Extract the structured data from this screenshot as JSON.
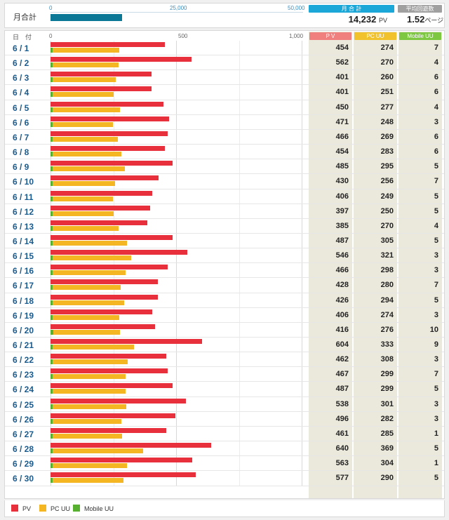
{
  "summary": {
    "month_total_label": "月合計",
    "top_axis_ticks": [
      "0",
      "25,000",
      "50,000"
    ],
    "top_axis_max": 50000,
    "total_value": 14232,
    "headers": {
      "month_total": "月 合 計",
      "avg_visits": "平均回遊数"
    },
    "total_pv_text": "14,232",
    "pv_unit": "PV",
    "avg_value_text": "1.52",
    "avg_unit": "ページ"
  },
  "table": {
    "date_header": "日　付",
    "axis_ticks": [
      "0",
      "500",
      "1,000"
    ],
    "col_headers": {
      "pv": "P V",
      "pc_uu": "PC UU",
      "mobile_uu": "Mobile UU"
    }
  },
  "legend": [
    {
      "label": "PV",
      "color": "#e8303d"
    },
    {
      "label": "PC UU",
      "color": "#f5b623"
    },
    {
      "label": "Mobile UU",
      "color": "#58b031"
    }
  ],
  "colors": {
    "pv": "#e8303d",
    "pc_uu": "#f5b623",
    "mobile_uu": "#58b031",
    "total_bar": "#0a7896",
    "hdr_pv": "#f0807e",
    "hdr_pc": "#f2c22c",
    "hdr_mobile": "#7dc741",
    "hdr_total": "#1ba8d9",
    "hdr_avg": "#a0a0a0"
  },
  "chart_data": {
    "type": "bar",
    "orientation": "horizontal",
    "xlim": [
      0,
      1000
    ],
    "categories": [
      "6 / 1",
      "6 / 2",
      "6 / 3",
      "6 / 4",
      "6 / 5",
      "6 / 6",
      "6 / 7",
      "6 / 8",
      "6 / 9",
      "6 / 10",
      "6 / 11",
      "6 / 12",
      "6 / 13",
      "6 / 14",
      "6 / 15",
      "6 / 16",
      "6 / 17",
      "6 / 18",
      "6 / 19",
      "6 / 20",
      "6 / 21",
      "6 / 22",
      "6 / 23",
      "6 / 24",
      "6 / 25",
      "6 / 26",
      "6 / 27",
      "6 / 28",
      "6 / 29",
      "6 / 30"
    ],
    "series": [
      {
        "name": "PV",
        "values": [
          454,
          562,
          401,
          401,
          450,
          471,
          466,
          454,
          485,
          430,
          406,
          397,
          385,
          487,
          546,
          466,
          428,
          426,
          406,
          416,
          604,
          462,
          467,
          487,
          538,
          496,
          461,
          640,
          563,
          577
        ]
      },
      {
        "name": "PC UU",
        "values": [
          274,
          270,
          260,
          251,
          277,
          248,
          269,
          283,
          295,
          256,
          249,
          250,
          270,
          305,
          321,
          298,
          280,
          294,
          274,
          276,
          333,
          308,
          299,
          299,
          301,
          282,
          285,
          369,
          304,
          290
        ]
      },
      {
        "name": "Mobile UU",
        "values": [
          7,
          4,
          6,
          6,
          4,
          3,
          6,
          6,
          5,
          7,
          5,
          5,
          4,
          5,
          3,
          3,
          7,
          5,
          3,
          10,
          9,
          3,
          7,
          5,
          3,
          3,
          1,
          5,
          1,
          5
        ]
      }
    ]
  }
}
